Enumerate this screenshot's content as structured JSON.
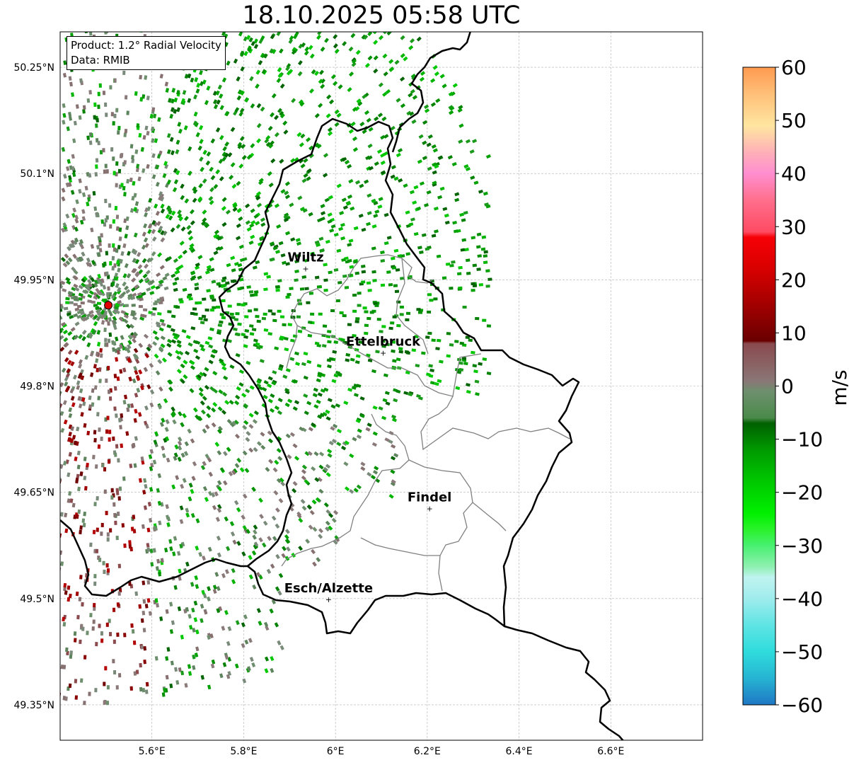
{
  "title": "18.10.2025 05:58 UTC",
  "product_box": {
    "line1": "Product: 1.2° Radial Velocity",
    "line2": "Data: RMIB"
  },
  "map": {
    "lon_range": [
      5.4,
      6.8
    ],
    "lat_range": [
      49.3,
      50.3
    ],
    "lat_ticks": [
      {
        "value": 50.25,
        "label": "50.25°N"
      },
      {
        "value": 50.1,
        "label": "50.1°N"
      },
      {
        "value": 49.95,
        "label": "49.95°N"
      },
      {
        "value": 49.8,
        "label": "49.8°N"
      },
      {
        "value": 49.65,
        "label": "49.65°N"
      },
      {
        "value": 49.5,
        "label": "49.5°N"
      },
      {
        "value": 49.35,
        "label": "49.35°N"
      }
    ],
    "lon_ticks": [
      {
        "value": 5.6,
        "label": "5.6°E"
      },
      {
        "value": 5.8,
        "label": "5.8°E"
      },
      {
        "value": 6.0,
        "label": "6°E"
      },
      {
        "value": 6.2,
        "label": "6.2°E"
      },
      {
        "value": 6.4,
        "label": "6.4°E"
      },
      {
        "value": 6.6,
        "label": "6.6°E"
      }
    ],
    "radar_site": {
      "lon": 5.505,
      "lat": 49.914
    },
    "cities": [
      {
        "name": "Wiltz",
        "lon": 5.935,
        "lat": 49.966
      },
      {
        "name": "Ettelbruck",
        "lon": 6.104,
        "lat": 49.847
      },
      {
        "name": "Findel",
        "lon": 6.205,
        "lat": 49.627
      },
      {
        "name": "Esch/Alzette",
        "lon": 5.985,
        "lat": 49.499
      }
    ],
    "colors": {
      "border": "#000000",
      "canton_lines": "#808080",
      "grid": "#b0b0b0",
      "radar_site": "#e00000"
    }
  },
  "colorbar": {
    "label": "m/s",
    "min": -60,
    "max": 60,
    "ticks": [
      {
        "value": 60,
        "label": "60"
      },
      {
        "value": 50,
        "label": "50"
      },
      {
        "value": 40,
        "label": "40"
      },
      {
        "value": 30,
        "label": "30"
      },
      {
        "value": 20,
        "label": "20"
      },
      {
        "value": 10,
        "label": "10"
      },
      {
        "value": 0,
        "label": "0"
      },
      {
        "value": -10,
        "label": "−10"
      },
      {
        "value": -20,
        "label": "−20"
      },
      {
        "value": -30,
        "label": "−30"
      },
      {
        "value": -40,
        "label": "−40"
      },
      {
        "value": -50,
        "label": "−50"
      },
      {
        "value": -60,
        "label": "−60"
      }
    ],
    "color_stops": [
      {
        "value": -60,
        "color": "#1f77c4"
      },
      {
        "value": -55,
        "color": "#26b4d2"
      },
      {
        "value": -50,
        "color": "#2fdcdc"
      },
      {
        "value": -45,
        "color": "#5fe4e4"
      },
      {
        "value": -40,
        "color": "#a0eced"
      },
      {
        "value": -36,
        "color": "#bff3ef"
      },
      {
        "value": -34,
        "color": "#8ff0b0"
      },
      {
        "value": -30,
        "color": "#48f070"
      },
      {
        "value": -27,
        "color": "#2af22a"
      },
      {
        "value": -24,
        "color": "#00f000"
      },
      {
        "value": -18,
        "color": "#00c800"
      },
      {
        "value": -12,
        "color": "#009a00"
      },
      {
        "value": -7,
        "color": "#006000"
      },
      {
        "value": -6,
        "color": "#4a8a4a"
      },
      {
        "value": -1,
        "color": "#6e8f6e"
      },
      {
        "value": 1,
        "color": "#8a7676"
      },
      {
        "value": 8,
        "color": "#8a4a4e"
      },
      {
        "value": 8.5,
        "color": "#6a0000"
      },
      {
        "value": 15,
        "color": "#a00000"
      },
      {
        "value": 22,
        "color": "#d80000"
      },
      {
        "value": 28,
        "color": "#f60006"
      },
      {
        "value": 29,
        "color": "#ff4a62"
      },
      {
        "value": 35,
        "color": "#ff6f8c"
      },
      {
        "value": 40,
        "color": "#ff8ed0"
      },
      {
        "value": 44,
        "color": "#ffb0b8"
      },
      {
        "value": 49,
        "color": "#ffe6a0"
      },
      {
        "value": 55,
        "color": "#ffbf78"
      },
      {
        "value": 60,
        "color": "#ff9a50"
      }
    ]
  }
}
